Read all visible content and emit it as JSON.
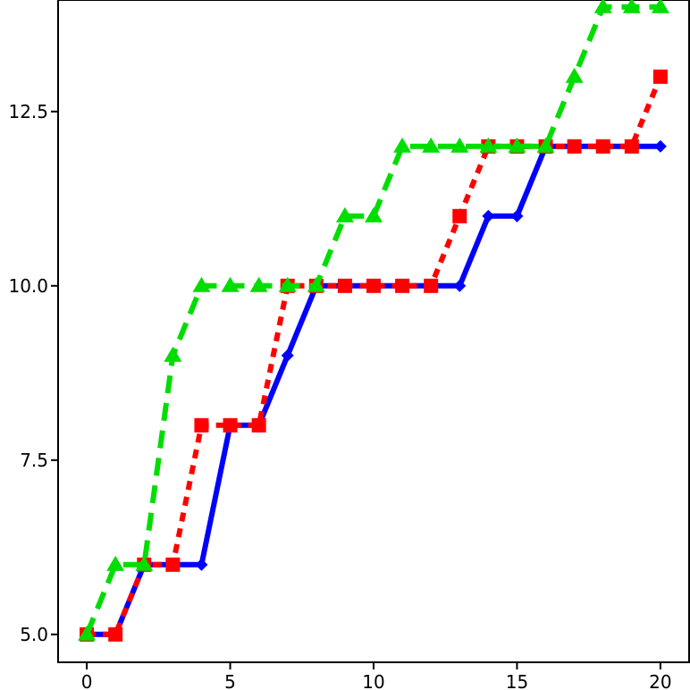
{
  "chart_data": {
    "type": "line",
    "title": "",
    "xlabel": "",
    "ylabel": "",
    "xlim": [
      -1,
      21
    ],
    "ylim": [
      14.1,
      4.6
    ],
    "y_inverted": true,
    "grid": false,
    "legend": "none",
    "x_ticks": [
      0,
      5,
      10,
      15,
      20
    ],
    "x_tick_labels": [
      "0",
      "5",
      "10",
      "15",
      "20"
    ],
    "y_ticks": [
      5.0,
      7.5,
      10.0,
      12.5
    ],
    "y_tick_labels": [
      "5.0",
      "7.5",
      "10.0",
      "12.5"
    ],
    "x": [
      0,
      1,
      2,
      3,
      4,
      5,
      6,
      7,
      8,
      9,
      10,
      11,
      12,
      13,
      14,
      15,
      16,
      17,
      18,
      19,
      20
    ],
    "series": [
      {
        "color": "#0000ff",
        "line_style": "solid",
        "marker": "diamond",
        "values": [
          5,
          5,
          6,
          6,
          6,
          8,
          8,
          9,
          10,
          10,
          10,
          10,
          10,
          10,
          11,
          11,
          12,
          12,
          12,
          12,
          12
        ]
      },
      {
        "color": "#ff0000",
        "line_style": "dotted",
        "marker": "square",
        "values": [
          5,
          5,
          6,
          6,
          8,
          8,
          8,
          10,
          10,
          10,
          10,
          10,
          10,
          11,
          12,
          12,
          12,
          12,
          12,
          12,
          13
        ]
      },
      {
        "color": "#00dd00",
        "line_style": "dashed",
        "marker": "triangle",
        "values": [
          5,
          6,
          6,
          9,
          10,
          10,
          10,
          10,
          10,
          11,
          11,
          12,
          12,
          12,
          12,
          12,
          12,
          13,
          14,
          14,
          14
        ]
      }
    ]
  }
}
